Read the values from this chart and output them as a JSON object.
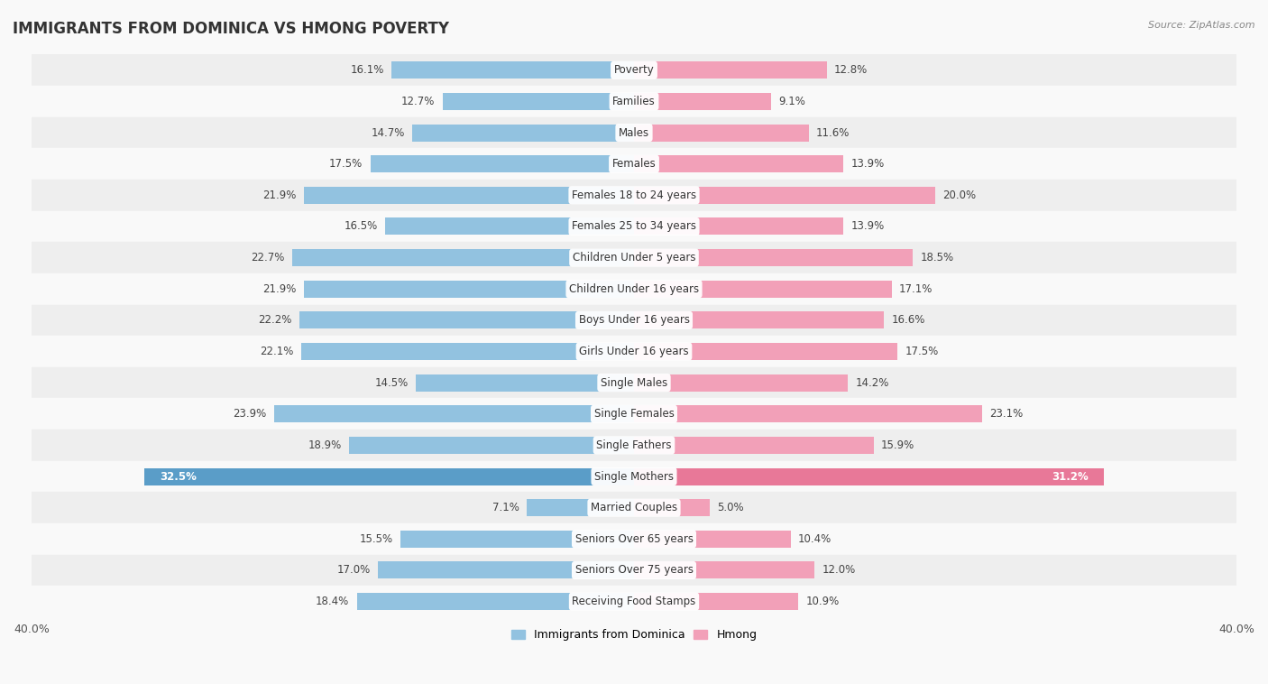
{
  "title": "IMMIGRANTS FROM DOMINICA VS HMONG POVERTY",
  "source": "Source: ZipAtlas.com",
  "categories": [
    "Poverty",
    "Families",
    "Males",
    "Females",
    "Females 18 to 24 years",
    "Females 25 to 34 years",
    "Children Under 5 years",
    "Children Under 16 years",
    "Boys Under 16 years",
    "Girls Under 16 years",
    "Single Males",
    "Single Females",
    "Single Fathers",
    "Single Mothers",
    "Married Couples",
    "Seniors Over 65 years",
    "Seniors Over 75 years",
    "Receiving Food Stamps"
  ],
  "dominica_values": [
    16.1,
    12.7,
    14.7,
    17.5,
    21.9,
    16.5,
    22.7,
    21.9,
    22.2,
    22.1,
    14.5,
    23.9,
    18.9,
    32.5,
    7.1,
    15.5,
    17.0,
    18.4
  ],
  "hmong_values": [
    12.8,
    9.1,
    11.6,
    13.9,
    20.0,
    13.9,
    18.5,
    17.1,
    16.6,
    17.5,
    14.2,
    23.1,
    15.9,
    31.2,
    5.0,
    10.4,
    12.0,
    10.9
  ],
  "dominica_color": "#92C2E0",
  "hmong_color": "#F2A0B8",
  "dominica_highlight_color": "#5A9DC8",
  "hmong_highlight_color": "#E87898",
  "highlight_text_color": "#ffffff",
  "background_color": "#f9f9f9",
  "row_even_color": "#eeeeee",
  "row_odd_color": "#f9f9f9",
  "xlim": 40.0,
  "bar_height": 0.55,
  "legend_dominica": "Immigrants from Dominica",
  "legend_hmong": "Hmong",
  "highlight_indices": [
    13
  ],
  "label_fontsize": 8.5,
  "category_fontsize": 8.5,
  "title_fontsize": 12
}
